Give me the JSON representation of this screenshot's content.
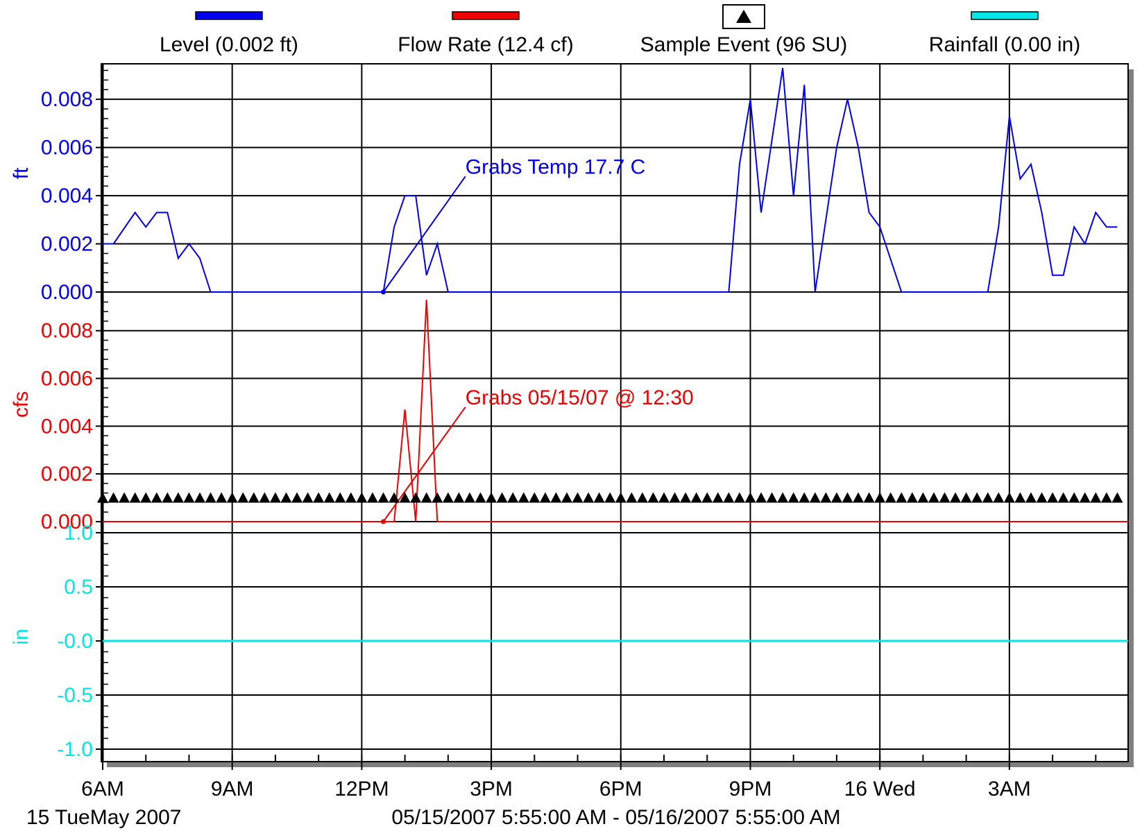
{
  "chart_data": {
    "type": "line",
    "colors": {
      "level": "#0000ee",
      "flow": "#ee0000",
      "rain": "#00e5e5",
      "sample": "#000000",
      "grid": "#000000",
      "shadow": "#808080"
    },
    "legend": {
      "placement": "top",
      "items": [
        {
          "label": "Level (0.002 ft)",
          "swatch": "line",
          "color": "#0000ee"
        },
        {
          "label": "Flow Rate (12.4 cf)",
          "swatch": "line",
          "color": "#ee0000"
        },
        {
          "label": "Sample Event (96 SU)",
          "swatch": "triangle",
          "color": "#000000"
        },
        {
          "label": "Rainfall (0.00 in)",
          "swatch": "line",
          "color": "#00e5e5"
        }
      ]
    },
    "x_axis": {
      "range_hours": [
        0,
        23.75
      ],
      "ticks": [
        {
          "h": 0,
          "label": "6AM"
        },
        {
          "h": 3,
          "label": "9AM"
        },
        {
          "h": 6,
          "label": "12PM"
        },
        {
          "h": 9,
          "label": "3PM"
        },
        {
          "h": 12,
          "label": "6PM"
        },
        {
          "h": 15,
          "label": "9PM"
        },
        {
          "h": 18,
          "label": "16 Wed"
        },
        {
          "h": 21,
          "label": "3AM"
        }
      ],
      "minor_step_hours": 1,
      "date_label": "15 TueMay 2007",
      "range_label": "05/15/2007 5:55:00 AM - 05/16/2007 5:55:00 AM"
    },
    "panels": [
      {
        "id": "level",
        "ylabel": "ft",
        "ylim": [
          0,
          0.0093
        ],
        "ticks": [
          0.0,
          0.002,
          0.004,
          0.006,
          0.008
        ],
        "tick_labels": [
          "0.000",
          "0.002",
          "0.004",
          "0.006",
          "0.008"
        ],
        "series": {
          "x": [
            0,
            0.25,
            0.75,
            1.0,
            1.25,
            1.5,
            1.75,
            2.0,
            2.25,
            2.5,
            5.0,
            6.5,
            6.75,
            7.0,
            7.25,
            7.5,
            7.75,
            8.0,
            12.0,
            14.5,
            14.75,
            15.0,
            15.25,
            15.75,
            16.0,
            16.25,
            16.5,
            17.0,
            17.25,
            17.5,
            17.75,
            18.0,
            18.5,
            20.5,
            20.75,
            21.0,
            21.25,
            21.5,
            21.75,
            22.0,
            22.25,
            22.5,
            22.75,
            23.0,
            23.25,
            23.5
          ],
          "y": [
            0.002,
            0.002,
            0.0033,
            0.0027,
            0.0033,
            0.0033,
            0.0014,
            0.002,
            0.0014,
            0.0,
            0.0,
            0.0,
            0.0027,
            0.004,
            0.004,
            0.0007,
            0.002,
            0.0,
            0.0,
            0.0,
            0.0053,
            0.008,
            0.0033,
            0.0093,
            0.004,
            0.0086,
            0.0,
            0.006,
            0.008,
            0.006,
            0.0033,
            0.0027,
            0.0,
            0.0,
            0.0027,
            0.0073,
            0.0047,
            0.0053,
            0.0033,
            0.0007,
            0.0007,
            0.0027,
            0.002,
            0.0033,
            0.0027,
            0.0027
          ]
        },
        "annotation": {
          "text": "Grabs Temp 17.7 C",
          "anchor": {
            "x": 6.5,
            "y": 0.0
          },
          "text_at": {
            "x": 8.4,
            "y": 0.0048
          }
        }
      },
      {
        "id": "flow",
        "ylabel": "cfs",
        "ylim": [
          0,
          0.0093
        ],
        "ticks": [
          0.0,
          0.002,
          0.004,
          0.006,
          0.008
        ],
        "tick_labels": [
          "0.000",
          "0.002",
          "0.004",
          "0.006",
          "0.008"
        ],
        "series": {
          "x": [
            0,
            6.5,
            6.75,
            7.0,
            7.25,
            7.5,
            7.75,
            23.75
          ],
          "y": [
            0.0,
            0.0,
            0.0,
            0.0047,
            0.0,
            0.0093,
            0.0,
            0.0
          ]
        },
        "annotation": {
          "text": "Grabs 05/15/07 @ 12:30",
          "anchor": {
            "x": 6.5,
            "y": 0.0
          },
          "text_at": {
            "x": 8.4,
            "y": 0.0048
          }
        },
        "sample_events": {
          "marker": "triangle",
          "count": 96,
          "step_hours": 0.25,
          "level": 0.001
        }
      },
      {
        "id": "rain",
        "ylabel": "in",
        "ylim": [
          -1.0,
          1.0
        ],
        "ticks": [
          -1.0,
          -0.5,
          0.0,
          0.5,
          1.0
        ],
        "tick_labels": [
          "-1.0",
          "-0.5",
          "-0.0",
          "0.5",
          "1.0"
        ],
        "series": {
          "x": [
            0,
            23.75
          ],
          "y": [
            0.0,
            0.0
          ]
        }
      }
    ]
  }
}
